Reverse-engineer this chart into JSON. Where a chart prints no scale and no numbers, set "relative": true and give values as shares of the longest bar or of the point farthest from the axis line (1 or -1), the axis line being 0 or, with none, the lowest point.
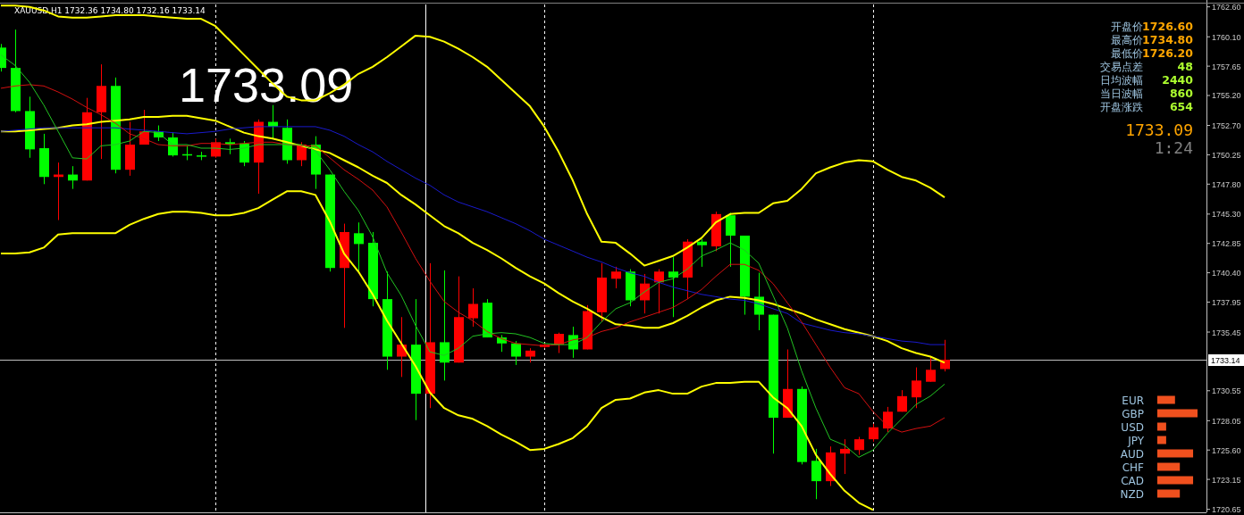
{
  "chart_data": [
    {
      "type": "candlestick",
      "categories": [
        null,
        null,
        null,
        null,
        null,
        null,
        null,
        null,
        null,
        null,
        null,
        null,
        null,
        null,
        null,
        null,
        null,
        null,
        null,
        null,
        null,
        null,
        null,
        null,
        null,
        null,
        null,
        null,
        null,
        null,
        null,
        null,
        null,
        null,
        null,
        null,
        null,
        null,
        null,
        null,
        null,
        null,
        null,
        null,
        null,
        null,
        null,
        null,
        null,
        null,
        null,
        null,
        null,
        null,
        null,
        null,
        null,
        null,
        null,
        null,
        null,
        null,
        null,
        null,
        null,
        null,
        null
      ],
      "ohlc": [
        [
          1759.2,
          1759.5,
          1757.2,
          1757.5
        ],
        [
          1757.5,
          1760.7,
          1753.8,
          1753.9
        ],
        [
          1753.9,
          1755.1,
          1750.0,
          1750.7
        ],
        [
          1750.8,
          1752.0,
          1747.8,
          1748.4
        ],
        [
          1748.4,
          1749.6,
          1744.8,
          1748.6
        ],
        [
          1748.6,
          1749.3,
          1747.4,
          1748.1
        ],
        [
          1748.1,
          1755.0,
          1748.1,
          1753.8
        ],
        [
          1753.8,
          1757.8,
          1749.9,
          1756.0
        ],
        [
          1756.0,
          1756.7,
          1748.7,
          1749.0
        ],
        [
          1749.0,
          1753.0,
          1748.5,
          1751.1
        ],
        [
          1751.1,
          1754.0,
          1751.1,
          1752.2
        ],
        [
          1752.2,
          1752.7,
          1751.4,
          1751.7
        ],
        [
          1751.7,
          1752.1,
          1750.1,
          1750.2
        ],
        [
          1750.3,
          1751.0,
          1749.8,
          1750.2
        ],
        [
          1750.2,
          1750.5,
          1749.8,
          1750.1
        ],
        [
          1750.1,
          1751.6,
          1750.0,
          1751.3
        ],
        [
          1751.3,
          1751.6,
          1750.3,
          1751.1
        ],
        [
          1751.2,
          1751.4,
          1749.3,
          1749.6
        ],
        [
          1749.6,
          1753.2,
          1747.0,
          1753.0
        ],
        [
          1753.0,
          1754.4,
          1751.6,
          1752.6
        ],
        [
          1752.5,
          1753.2,
          1749.5,
          1749.8
        ],
        [
          1749.8,
          1751.3,
          1749.3,
          1751.1
        ],
        [
          1751.1,
          1751.8,
          1747.4,
          1748.6
        ],
        [
          1748.6,
          1748.6,
          1740.5,
          1740.8
        ],
        [
          1740.8,
          1744.5,
          1735.8,
          1743.8
        ],
        [
          1743.7,
          1744.6,
          1740.4,
          1742.8
        ],
        [
          1742.9,
          1743.8,
          1737.6,
          1738.2
        ],
        [
          1738.2,
          1740.5,
          1732.3,
          1733.4
        ],
        [
          1733.4,
          1736.7,
          1731.7,
          1734.4
        ],
        [
          1734.4,
          1738.2,
          1728.1,
          1730.3
        ],
        [
          1730.3,
          1741.2,
          1729.1,
          1734.6
        ],
        [
          1734.6,
          1740.6,
          1731.4,
          1732.9
        ],
        [
          1732.9,
          1740.1,
          1732.9,
          1736.7
        ],
        [
          1736.6,
          1739.1,
          1735.9,
          1737.8
        ],
        [
          1737.9,
          1738.2,
          1735.0,
          1735.0
        ],
        [
          1735.0,
          1735.2,
          1733.8,
          1734.5
        ],
        [
          1734.5,
          1734.7,
          1732.7,
          1733.4
        ],
        [
          1733.4,
          1734.1,
          1732.9,
          1733.9
        ],
        [
          1734.2,
          1734.5,
          1734.1,
          1734.4
        ],
        [
          1734.4,
          1735.4,
          1733.7,
          1735.3
        ],
        [
          1735.2,
          1735.9,
          1733.3,
          1734.0
        ],
        [
          1734.0,
          1737.7,
          1734.0,
          1737.2
        ],
        [
          1737.1,
          1741.2,
          1736.3,
          1740.0
        ],
        [
          1739.9,
          1740.9,
          1739.1,
          1740.5
        ],
        [
          1740.5,
          1740.7,
          1737.6,
          1738.1
        ],
        [
          1738.1,
          1740.3,
          1737.0,
          1739.5
        ],
        [
          1739.6,
          1740.7,
          1737.0,
          1740.5
        ],
        [
          1740.5,
          1741.7,
          1736.7,
          1740.0
        ],
        [
          1740.0,
          1743.2,
          1738.2,
          1743.0
        ],
        [
          1743.0,
          1743.2,
          1740.9,
          1742.7
        ],
        [
          1742.6,
          1745.5,
          1742.2,
          1745.3
        ],
        [
          1745.2,
          1745.4,
          1740.9,
          1743.5
        ],
        [
          1743.5,
          1743.5,
          1736.9,
          1738.4
        ],
        [
          1738.4,
          1740.4,
          1735.6,
          1736.9
        ],
        [
          1736.9,
          1736.9,
          1725.3,
          1728.3
        ],
        [
          1728.3,
          1734.0,
          1728.3,
          1730.7
        ],
        [
          1730.7,
          1730.9,
          1724.4,
          1724.6
        ],
        [
          1724.7,
          1725.7,
          1721.5,
          1723.0
        ],
        [
          1723.0,
          1725.9,
          1722.6,
          1725.4
        ],
        [
          1725.3,
          1726.5,
          1723.6,
          1725.7
        ],
        [
          1725.6,
          1726.7,
          1725.2,
          1726.5
        ],
        [
          1726.5,
          1727.8,
          1726.3,
          1727.5
        ],
        [
          1727.4,
          1729.2,
          1727.1,
          1728.8
        ],
        [
          1728.8,
          1730.6,
          1728.8,
          1730.1
        ],
        [
          1730.0,
          1732.5,
          1729.1,
          1731.4
        ],
        [
          1731.3,
          1733.4,
          1731.3,
          1732.3
        ],
        [
          1732.36,
          1734.8,
          1732.16,
          1733.14
        ]
      ],
      "series": [
        {
          "type": "line",
          "color": "#ffff00",
          "values": [
            1762.7,
            1762.7,
            1762.6,
            1762.3,
            1761.8,
            1761.7,
            1761.7,
            1761.8,
            1761.9,
            1761.9,
            1761.9,
            1761.8,
            1761.7,
            1761.6,
            1761.6,
            1761.0,
            1759.8,
            1758.6,
            1757.4,
            1756.2,
            1755.1,
            1754.8,
            1754.8,
            1755.4,
            1756.1,
            1757.0,
            1757.6,
            1758.4,
            1759.3,
            1760.2,
            1760.1,
            1759.7,
            1759.1,
            1758.4,
            1757.6,
            1756.5,
            1755.4,
            1754.3,
            1752.6,
            1750.5,
            1748.1,
            1745.3,
            1743.0,
            1742.9,
            1742.0,
            1741.0,
            1741.4,
            1741.8,
            1742.5,
            1743.3,
            1744.6,
            1745.3,
            1745.4,
            1745.4,
            1746.2,
            1746.4,
            1747.4,
            1748.7,
            1749.2,
            1749.6,
            1749.8,
            1749.7,
            1749.0,
            1748.4,
            1748.1,
            1747.5,
            1746.7
          ]
        },
        {
          "type": "line",
          "color": "#ffff00",
          "values": [
            1752.2,
            1752.2,
            1752.3,
            1752.4,
            1752.5,
            1752.7,
            1752.8,
            1753.0,
            1753.1,
            1753.2,
            1753.4,
            1753.4,
            1753.5,
            1753.5,
            1753.3,
            1753.1,
            1752.6,
            1752.1,
            1751.8,
            1751.6,
            1751.3,
            1751.0,
            1750.7,
            1750.4,
            1749.8,
            1749.2,
            1748.5,
            1747.9,
            1746.9,
            1746.1,
            1745.2,
            1744.3,
            1743.7,
            1742.9,
            1742.3,
            1741.6,
            1740.8,
            1740.1,
            1739.5,
            1738.7,
            1738.0,
            1737.4,
            1736.7,
            1736.1,
            1736.0,
            1735.8,
            1735.8,
            1736.2,
            1736.8,
            1737.5,
            1738.1,
            1738.4,
            1738.3,
            1738.1,
            1737.8,
            1737.4,
            1737.0,
            1736.5,
            1736.1,
            1735.7,
            1735.4,
            1735.1,
            1734.7,
            1734.1,
            1733.7,
            1733.4,
            1732.9
          ]
        },
        {
          "type": "line",
          "color": "#ffff00",
          "values": [
            1742.0,
            1742.0,
            1742.1,
            1742.5,
            1743.6,
            1743.7,
            1743.7,
            1743.7,
            1743.7,
            1744.4,
            1744.9,
            1745.3,
            1745.5,
            1745.5,
            1745.4,
            1745.2,
            1745.2,
            1745.4,
            1745.8,
            1746.5,
            1747.2,
            1747.2,
            1746.9,
            1744.7,
            1742.0,
            1740.5,
            1738.6,
            1736.4,
            1734.5,
            1732.6,
            1730.4,
            1729.1,
            1728.5,
            1728.2,
            1727.6,
            1726.9,
            1726.3,
            1725.6,
            1725.7,
            1726.1,
            1726.6,
            1727.6,
            1729.1,
            1729.8,
            1729.9,
            1730.4,
            1730.6,
            1730.3,
            1730.3,
            1730.9,
            1731.2,
            1731.2,
            1731.3,
            1731.3,
            1730.0,
            1729.1,
            1727.6,
            1725.2,
            1723.6,
            1722.2,
            1721.2,
            1720.6,
            null,
            null,
            null,
            null,
            null
          ]
        },
        {
          "type": "line",
          "color": "#1a1acd",
          "values": [
            1752.2,
            1752.3,
            1752.4,
            1752.5,
            1752.5,
            1752.5,
            1752.5,
            1752.5,
            1752.5,
            1752.4,
            1752.3,
            1752.2,
            1752.1,
            1752.0,
            1752.1,
            1752.2,
            1752.4,
            1752.5,
            1752.6,
            1752.6,
            1752.6,
            1752.6,
            1752.6,
            1752.3,
            1751.8,
            1751.1,
            1750.5,
            1749.7,
            1749.0,
            1748.3,
            1747.7,
            1746.9,
            1746.3,
            1745.9,
            1745.5,
            1745.0,
            1744.5,
            1743.9,
            1743.2,
            1742.7,
            1742.2,
            1741.7,
            1741.3,
            1740.8,
            1740.4,
            1740.1,
            1739.6,
            1739.2,
            1738.9,
            1738.6,
            1738.4,
            1738.2,
            1738.1,
            1737.8,
            1737.4,
            1737.0,
            1736.2,
            1735.9,
            1735.6,
            1735.4,
            1735.3,
            1735.1,
            1734.9,
            1734.7,
            1734.6,
            1734.4,
            1734.4
          ]
        },
        {
          "type": "line",
          "color": "#d41010",
          "values": [
            1755.8,
            1756.0,
            1756.1,
            1756.0,
            1755.5,
            1754.9,
            1754.2,
            1753.6,
            1752.9,
            1752.0,
            1751.6,
            1751.1,
            1751.0,
            1751.0,
            1751.2,
            1751.2,
            1751.1,
            1751.2,
            1751.3,
            1751.3,
            1751.1,
            1751.0,
            1751.0,
            1750.0,
            1749.0,
            1748.2,
            1747.3,
            1745.9,
            1743.8,
            1741.6,
            1739.7,
            1738.0,
            1737.1,
            1736.4,
            1735.5,
            1734.9,
            1734.5,
            1734.4,
            1734.3,
            1734.4,
            1734.8,
            1735.0,
            1735.5,
            1735.8,
            1736.3,
            1736.7,
            1737.1,
            1737.5,
            1738.2,
            1739.0,
            1740.1,
            1741.1,
            1741.1,
            1740.6,
            1739.5,
            1737.9,
            1736.3,
            1734.4,
            1732.5,
            1730.8,
            1730.3,
            1728.8,
            1727.6,
            1727.1,
            1727.4,
            1727.6,
            1728.3
          ]
        },
        {
          "type": "line",
          "color": "#22c422",
          "values": [
            1758.6,
            1757.7,
            1756.3,
            1754.4,
            1752.2,
            1750.0,
            1749.9,
            1751.0,
            1751.1,
            1751.4,
            1752.2,
            1752.1,
            1751.1,
            1751.1,
            1750.8,
            1750.8,
            1750.7,
            1750.8,
            1751.1,
            1751.1,
            1751.1,
            1751.1,
            1750.6,
            1749.0,
            1747.2,
            1745.6,
            1743.4,
            1740.4,
            1738.5,
            1736.0,
            1733.8,
            1733.5,
            1734.1,
            1735.1,
            1735.3,
            1735.4,
            1735.3,
            1735.0,
            1734.5,
            1734.4,
            1734.4,
            1735.0,
            1736.3,
            1737.4,
            1737.9,
            1738.8,
            1739.6,
            1739.9,
            1740.7,
            1741.8,
            1742.3,
            1742.9,
            1742.3,
            1741.2,
            1738.5,
            1735.8,
            1732.2,
            1729.1,
            1726.5,
            1726.0,
            1725.0,
            1725.6,
            1727.0,
            1728.2,
            1729.4,
            1730.1,
            1731.1
          ]
        }
      ],
      "ylim": [
        1720.4,
        1762.8
      ],
      "yticks": [
        {
          "value": 1762.6,
          "label": "1762.60"
        },
        {
          "value": 1760.1,
          "label": "1760.10"
        },
        {
          "value": 1757.65,
          "label": "1757.65"
        },
        {
          "value": 1755.2,
          "label": "1755.20"
        },
        {
          "value": 1752.7,
          "label": "1752.70"
        },
        {
          "value": 1750.25,
          "label": "1750.25"
        },
        {
          "value": 1747.8,
          "label": "1747.80"
        },
        {
          "value": 1745.3,
          "label": "1745.30"
        },
        {
          "value": 1742.85,
          "label": "1742.85"
        },
        {
          "value": 1740.4,
          "label": "1740.40"
        },
        {
          "value": 1737.95,
          "label": "1737.95"
        },
        {
          "value": 1735.45,
          "label": "1735.45"
        },
        {
          "value": 1730.55,
          "label": "1730.55"
        },
        {
          "value": 1728.05,
          "label": "1728.05"
        },
        {
          "value": 1725.6,
          "label": "1725.60"
        },
        {
          "value": 1723.15,
          "label": "1723.15"
        },
        {
          "value": 1720.65,
          "label": "1720.65"
        }
      ],
      "ref_lines": [
        {
          "axis": "y",
          "value": 1733.14,
          "label": "1733.14",
          "color": "#c0c0c0"
        }
      ],
      "grid": "x",
      "annotations": [
        "XAUUSD,H1  1732.36 1734.80 1732.16 1733.14",
        "1733.09",
        "开盘价",
        "1726.60",
        "最高价",
        "1734.80",
        "最低价",
        "1726.20",
        "交易点差",
        "48",
        "日均波幅",
        "2440",
        "当日波幅",
        "860",
        "开盘涨跌",
        "654",
        "1733.09",
        "1:24"
      ]
    },
    {
      "type": "bar",
      "orientation": "horizontal",
      "relative": true,
      "color": "#f0501e",
      "categories": [
        "EUR",
        "GBP",
        "USD",
        "JPY",
        "AUD",
        "CHF",
        "CAD",
        "NZD"
      ],
      "values": [
        0.44,
        1,
        0.22,
        0.22,
        0.89,
        0.56,
        0.89,
        0.56
      ]
    }
  ]
}
